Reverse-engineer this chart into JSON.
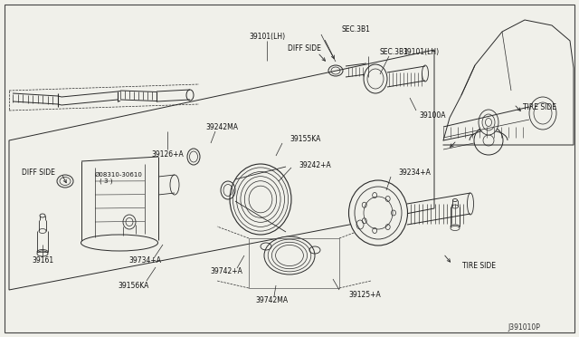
{
  "bg_color": "#f0f0ea",
  "line_color": "#2a2a2a",
  "border_color": "#555555",
  "labels": {
    "39101_LH_top": "39101(LH)",
    "diff_side_top": "DIFF SIDE",
    "sec381_top": "SEC.3B1",
    "sec381_mid": "SEC.3B1",
    "39101_LH_mid": "39101(LH)",
    "39100A": "39100A",
    "tire_side_right_top": "TIRE SIDE",
    "tire_side_right_bot": "TIRE SIDE",
    "diff_side_left": "DIFF SIDE",
    "08310_30610_a": "Ø08310-30610",
    "08310_30610_b": "( 3 )",
    "39126_A": "39126+A",
    "39242MA": "39242MA",
    "39155KA": "39155KA",
    "39242_A": "39242+A",
    "39234_A": "39234+A",
    "39734_A": "39734+A",
    "39742_A": "39742+A",
    "39156KA": "39156KA",
    "39742MA": "39742MA",
    "39125_A": "39125+A",
    "39161": "39161",
    "J391010P": "J391010P"
  }
}
